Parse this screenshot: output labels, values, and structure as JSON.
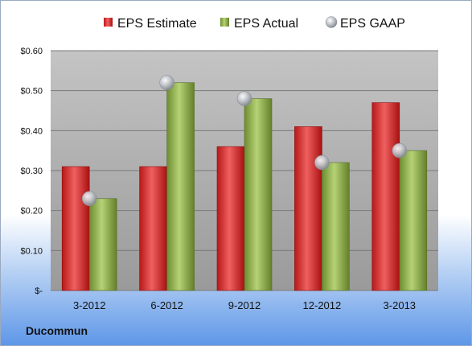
{
  "company": "Ducommun",
  "chart_data": {
    "type": "bar",
    "categories": [
      "3-2012",
      "6-2012",
      "9-2012",
      "12-2012",
      "3-2013"
    ],
    "series": [
      {
        "name": "EPS Estimate",
        "kind": "bar",
        "color": "#d42a2a",
        "values": [
          0.31,
          0.31,
          0.36,
          0.41,
          0.47
        ]
      },
      {
        "name": "EPS Actual",
        "kind": "bar",
        "color": "#8fb04a",
        "values": [
          0.23,
          0.52,
          0.48,
          0.32,
          0.35
        ]
      },
      {
        "name": "EPS GAAP",
        "kind": "marker",
        "color": "#b9bcc4",
        "values": [
          0.23,
          0.52,
          0.48,
          0.32,
          0.35
        ]
      }
    ],
    "yticks": [
      {
        "value": 0.6,
        "label": "$0.60"
      },
      {
        "value": 0.5,
        "label": "$0.50"
      },
      {
        "value": 0.4,
        "label": "$0.40"
      },
      {
        "value": 0.3,
        "label": "$0.30"
      },
      {
        "value": 0.2,
        "label": "$0.20"
      },
      {
        "value": 0.1,
        "label": "$0.10"
      },
      {
        "value": 0,
        "label": "$-"
      }
    ],
    "ylim": [
      0,
      0.6
    ],
    "grid": true,
    "legend": "top"
  }
}
